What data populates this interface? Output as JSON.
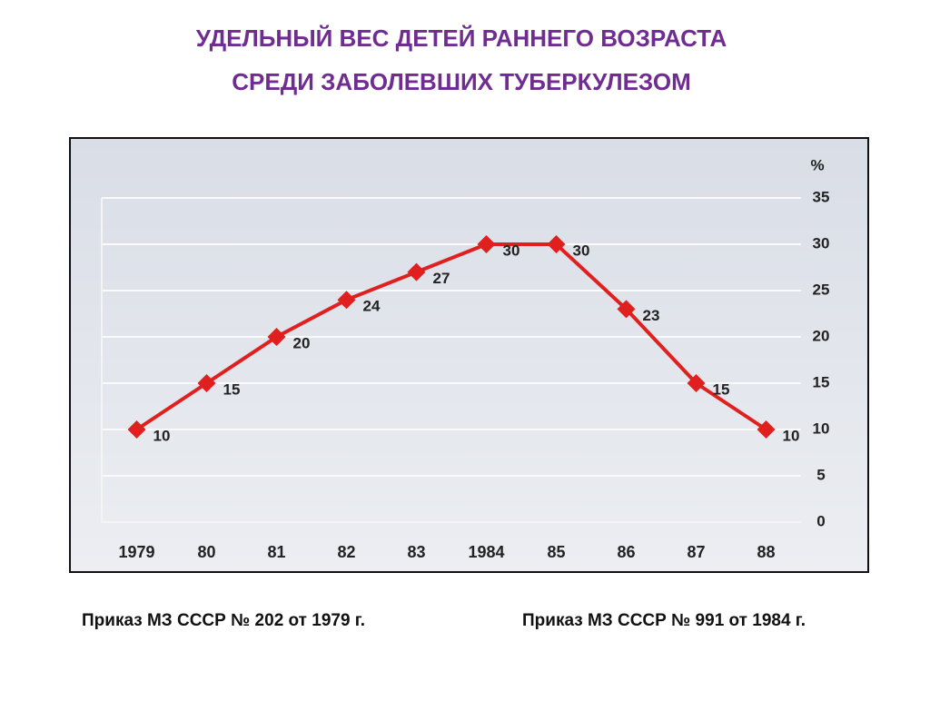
{
  "slide": {
    "title_lines": [
      "УДЕЛЬНЫЙ  ВЕС  ДЕТЕЙ  РАННЕГО  ВОЗРАСТА",
      "СРЕДИ  ЗАБОЛЕВШИХ  ТУБЕРКУЛЕЗОМ"
    ],
    "notes": [
      "Приказ МЗ СССР № 202 от 1979 г.",
      "Приказ МЗ СССР № 991 от 1984 г."
    ]
  },
  "chart_data": {
    "type": "line",
    "y_label": "%",
    "categories": [
      "1979",
      "80",
      "81",
      "82",
      "83",
      "1984",
      "85",
      "86",
      "87",
      "88"
    ],
    "series": [
      {
        "name": "Удельный вес",
        "color": "#e0201e",
        "values": [
          10,
          15,
          20,
          24,
          27,
          30,
          30,
          23,
          15,
          10
        ]
      }
    ],
    "ylim": [
      0,
      35
    ],
    "yticks": [
      0,
      5,
      10,
      15,
      20,
      25,
      30,
      35
    ],
    "grid": true,
    "y_axis_side": "right"
  }
}
